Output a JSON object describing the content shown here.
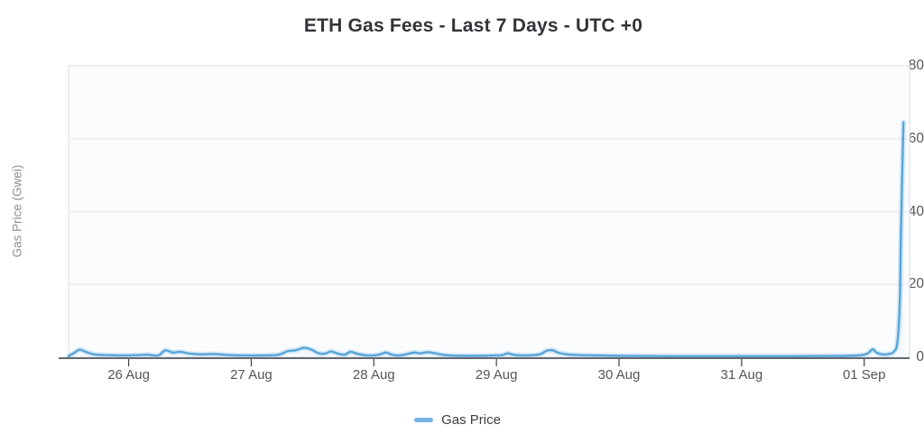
{
  "title": "ETH Gas Fees - Last 7 Days - UTC +0",
  "legend": {
    "label": "Gas Price",
    "marker_color": "#74b5e6"
  },
  "axes": {
    "y_title": "Gas Price (Gwei)",
    "y_ticks": [
      0,
      20,
      40,
      60,
      80
    ],
    "x_ticks": [
      "26 Aug",
      "27 Aug",
      "28 Aug",
      "29 Aug",
      "30 Aug",
      "31 Aug",
      "01 Sep"
    ]
  },
  "colors": {
    "line": "#58a5d8",
    "line_halo": "rgba(140,195,235,0.32)",
    "fill_top": "rgba(109,174,224,0.28)",
    "fill_bottom": "rgba(109,174,224,0.03)",
    "grid": "#ececee",
    "plot_border": "#e4e6e9",
    "plot_bg": "#fbfcfd",
    "baseline": "#65686c",
    "tick_mark": "#3f4246"
  },
  "chart_data": {
    "type": "line",
    "title": "ETH Gas Fees - Last 7 Days - UTC +0",
    "xlabel": "",
    "ylabel": "Gas Price (Gwei)",
    "legend_position": "bottom",
    "grid": "horizontal",
    "ylim": [
      0,
      80
    ],
    "y_gridlines": [
      20,
      40,
      60,
      80
    ],
    "x_unit": "days since 26 Aug 00:00 (UTC+0)",
    "x_range": [
      -0.49,
      6.37
    ],
    "x_tick_positions": [
      0,
      1,
      2,
      3,
      4,
      5,
      6
    ],
    "x_tick_labels": [
      "26 Aug",
      "27 Aug",
      "28 Aug",
      "29 Aug",
      "30 Aug",
      "31 Aug",
      "01 Sep"
    ],
    "series": [
      {
        "name": "Gas Price",
        "smooth": true,
        "points": [
          [
            -0.49,
            0.3
          ],
          [
            -0.44,
            1.3
          ],
          [
            -0.4,
            2.1
          ],
          [
            -0.35,
            1.5
          ],
          [
            -0.28,
            0.8
          ],
          [
            -0.18,
            0.6
          ],
          [
            -0.05,
            0.5
          ],
          [
            0.08,
            0.6
          ],
          [
            0.16,
            0.7
          ],
          [
            0.24,
            0.5
          ],
          [
            0.3,
            1.9
          ],
          [
            0.36,
            1.3
          ],
          [
            0.42,
            1.5
          ],
          [
            0.5,
            1.0
          ],
          [
            0.6,
            0.8
          ],
          [
            0.7,
            0.9
          ],
          [
            0.82,
            0.6
          ],
          [
            0.95,
            0.5
          ],
          [
            1.1,
            0.5
          ],
          [
            1.22,
            0.7
          ],
          [
            1.3,
            1.7
          ],
          [
            1.36,
            1.9
          ],
          [
            1.43,
            2.6
          ],
          [
            1.49,
            2.1
          ],
          [
            1.55,
            1.1
          ],
          [
            1.6,
            1.0
          ],
          [
            1.65,
            1.6
          ],
          [
            1.7,
            1.1
          ],
          [
            1.76,
            0.7
          ],
          [
            1.81,
            1.5
          ],
          [
            1.86,
            1.0
          ],
          [
            1.92,
            0.6
          ],
          [
            1.99,
            0.5
          ],
          [
            2.05,
            0.8
          ],
          [
            2.1,
            1.3
          ],
          [
            2.15,
            0.7
          ],
          [
            2.21,
            0.5
          ],
          [
            2.27,
            0.9
          ],
          [
            2.33,
            1.3
          ],
          [
            2.38,
            1.1
          ],
          [
            2.44,
            1.4
          ],
          [
            2.5,
            1.1
          ],
          [
            2.56,
            0.7
          ],
          [
            2.62,
            0.5
          ],
          [
            2.73,
            0.4
          ],
          [
            2.86,
            0.4
          ],
          [
            2.99,
            0.5
          ],
          [
            3.05,
            0.6
          ],
          [
            3.09,
            1.1
          ],
          [
            3.14,
            0.7
          ],
          [
            3.21,
            0.5
          ],
          [
            3.3,
            0.6
          ],
          [
            3.36,
            0.9
          ],
          [
            3.41,
            1.8
          ],
          [
            3.46,
            1.9
          ],
          [
            3.51,
            1.2
          ],
          [
            3.58,
            0.8
          ],
          [
            3.68,
            0.6
          ],
          [
            3.81,
            0.5
          ],
          [
            4.0,
            0.4
          ],
          [
            4.22,
            0.35
          ],
          [
            4.44,
            0.3
          ],
          [
            4.66,
            0.3
          ],
          [
            4.88,
            0.3
          ],
          [
            5.0,
            0.3
          ],
          [
            5.21,
            0.3
          ],
          [
            5.43,
            0.3
          ],
          [
            5.65,
            0.35
          ],
          [
            5.86,
            0.4
          ],
          [
            5.98,
            0.6
          ],
          [
            6.03,
            1.1
          ],
          [
            6.07,
            2.2
          ],
          [
            6.1,
            1.3
          ],
          [
            6.15,
            0.8
          ],
          [
            6.2,
            0.9
          ],
          [
            6.24,
            1.5
          ],
          [
            6.27,
            4.0
          ],
          [
            6.29,
            15.0
          ],
          [
            6.3,
            35.0
          ],
          [
            6.32,
            64.5
          ]
        ]
      }
    ]
  }
}
